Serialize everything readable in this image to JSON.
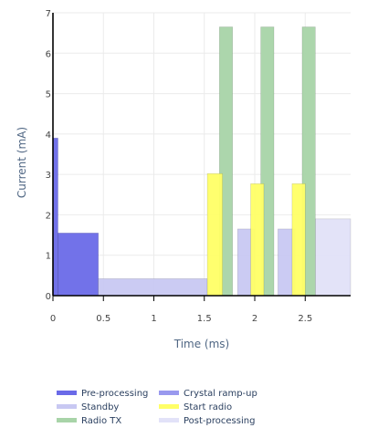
{
  "chart_data": {
    "type": "area",
    "xlabel": "Time (ms)",
    "ylabel": "Current (mA)",
    "xlim": [
      0,
      2.95
    ],
    "ylim": [
      0,
      7
    ],
    "grid": true,
    "x_ticks": [
      "0",
      "0.5",
      "1",
      "1.5",
      "2",
      "2.5"
    ],
    "x_tick_values": [
      0,
      0.5,
      1,
      1.5,
      2,
      2.5
    ],
    "y_ticks": [
      "0",
      "1",
      "2",
      "3",
      "4",
      "5",
      "6",
      "7"
    ],
    "y_tick_values": [
      0,
      1,
      2,
      3,
      4,
      5,
      6,
      7
    ],
    "legend_position": "bottom",
    "series": [
      {
        "name": "Pre-processing",
        "color": "#6a6ae8",
        "segments": [
          {
            "x0": 0,
            "x1": 0.05,
            "y": 3.9
          },
          {
            "x0": 0.05,
            "x1": 0.45,
            "y": 1.55
          }
        ]
      },
      {
        "name": "Crystal ramp-up",
        "color": "#9999ee",
        "segments": []
      },
      {
        "name": "Standby",
        "color": "#c8c8f2",
        "segments": [
          {
            "x0": 0.45,
            "x1": 1.53,
            "y": 0.42
          },
          {
            "x0": 1.83,
            "x1": 2.0,
            "y": 1.65
          },
          {
            "x0": 2.23,
            "x1": 2.4,
            "y": 1.65
          }
        ]
      },
      {
        "name": "Start radio",
        "color": "#ffff66",
        "segments": [
          {
            "x0": 1.53,
            "x1": 1.68,
            "y": 3.02
          },
          {
            "x0": 1.96,
            "x1": 2.09,
            "y": 2.77
          },
          {
            "x0": 2.37,
            "x1": 2.5,
            "y": 2.77
          }
        ]
      },
      {
        "name": "Radio TX",
        "color": "#a8d4a8",
        "segments": [
          {
            "x0": 1.65,
            "x1": 1.78,
            "y": 6.65
          },
          {
            "x0": 2.06,
            "x1": 2.19,
            "y": 6.65
          },
          {
            "x0": 2.47,
            "x1": 2.6,
            "y": 6.65
          }
        ]
      },
      {
        "name": "Post-processing",
        "color": "#e2e2f8",
        "segments": [
          {
            "x0": 2.6,
            "x1": 2.95,
            "y": 1.9
          }
        ]
      }
    ],
    "draw_order": [
      "Pre-processing",
      "Standby",
      "Post-processing",
      "Radio TX",
      "Start radio"
    ]
  }
}
